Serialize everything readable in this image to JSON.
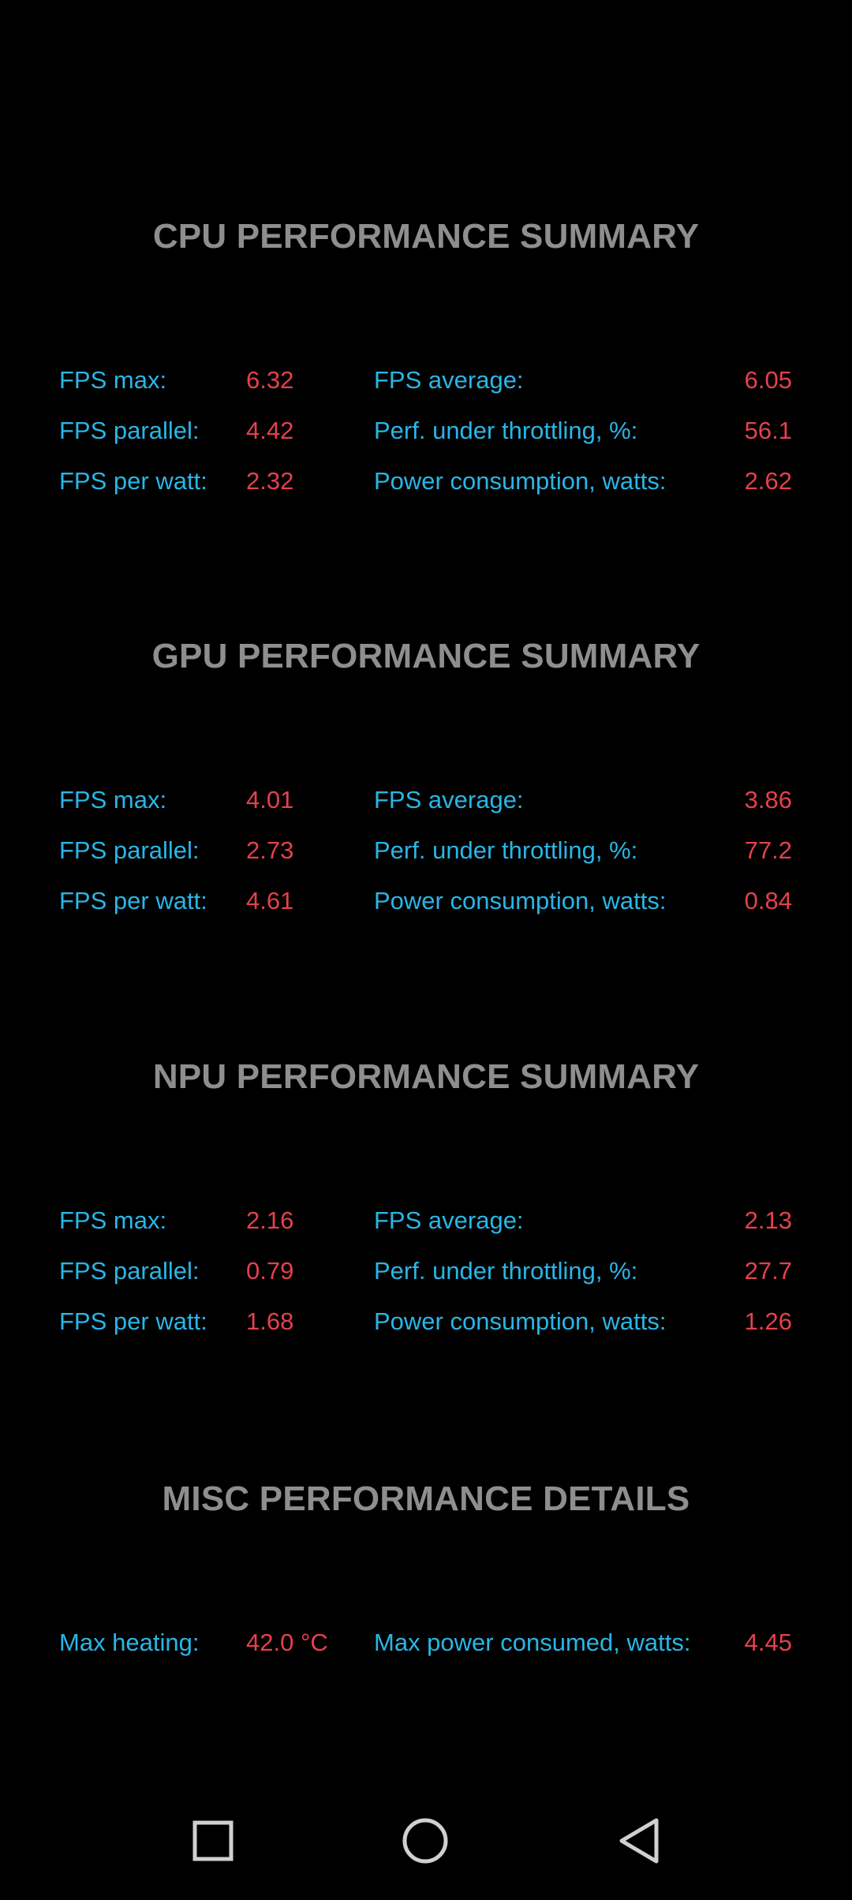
{
  "sections": [
    {
      "title": "CPU PERFORMANCE SUMMARY",
      "rows": [
        {
          "l1": "FPS max:",
          "v1": "6.32",
          "l2": "FPS average:",
          "v2": "6.05"
        },
        {
          "l1": "FPS parallel:",
          "v1": "4.42",
          "l2": "Perf. under throttling, %:",
          "v2": "56.1"
        },
        {
          "l1": "FPS per watt:",
          "v1": "2.32",
          "l2": "Power consumption, watts:",
          "v2": "2.62"
        }
      ]
    },
    {
      "title": "GPU PERFORMANCE SUMMARY",
      "rows": [
        {
          "l1": "FPS max:",
          "v1": "4.01",
          "l2": "FPS average:",
          "v2": "3.86"
        },
        {
          "l1": "FPS parallel:",
          "v1": "2.73",
          "l2": "Perf. under throttling, %:",
          "v2": "77.2"
        },
        {
          "l1": "FPS per watt:",
          "v1": "4.61",
          "l2": "Power consumption, watts:",
          "v2": "0.84"
        }
      ]
    },
    {
      "title": "NPU PERFORMANCE SUMMARY",
      "rows": [
        {
          "l1": "FPS max:",
          "v1": "2.16",
          "l2": "FPS average:",
          "v2": "2.13"
        },
        {
          "l1": "FPS parallel:",
          "v1": "0.79",
          "l2": "Perf. under throttling, %:",
          "v2": "27.7"
        },
        {
          "l1": "FPS per watt:",
          "v1": "1.68",
          "l2": "Power consumption, watts:",
          "v2": "1.26"
        }
      ]
    },
    {
      "title": "MISC PERFORMANCE DETAILS",
      "rows": [
        {
          "l1": "Max heating:",
          "v1": "42.0 °C",
          "l2": "Max power consumed, watts:",
          "v2": "4.45"
        }
      ]
    }
  ],
  "colors": {
    "background": "#000000",
    "title": "#8e8e8e",
    "label": "#29b6e6",
    "value": "#e5404d",
    "nav_icon": "#d0d0d0"
  },
  "navbar": {
    "icons": [
      "recent-apps-square-icon",
      "home-circle-icon",
      "back-triangle-icon"
    ]
  }
}
